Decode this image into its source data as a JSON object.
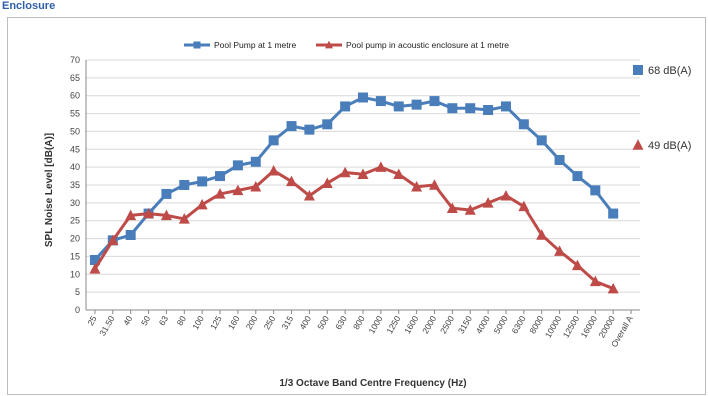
{
  "page": {
    "title": "Enclosure"
  },
  "chart_data": {
    "type": "line",
    "title": "",
    "xlabel": "1/3 Octave Band Centre Frequency (Hz)",
    "ylabel": "SPL Noise Level [dB(A)]",
    "ylim": [
      0,
      70
    ],
    "y_ticks": [
      0,
      5,
      10,
      15,
      20,
      25,
      30,
      35,
      40,
      45,
      50,
      55,
      60,
      65,
      70
    ],
    "grid": true,
    "legend_position": "top",
    "categories": [
      "25",
      "31.50",
      "40",
      "50",
      "63",
      "80",
      "100",
      "125",
      "160",
      "200",
      "250",
      "315",
      "400",
      "500",
      "630",
      "800",
      "1000",
      "1250",
      "1600",
      "2000",
      "2500",
      "3150",
      "4000",
      "5000",
      "6300",
      "8000",
      "10000",
      "12500",
      "16000",
      "20000",
      "Overall A"
    ],
    "series": [
      {
        "name": "Pool Pump at 1 metre",
        "color": "#4a7ebb",
        "marker": "square",
        "values": [
          14,
          19.5,
          21,
          27,
          32.5,
          35,
          36,
          37.5,
          40.5,
          41.5,
          47.5,
          51.5,
          50.5,
          52,
          57,
          59.5,
          58.5,
          57,
          57.5,
          58.5,
          56.5,
          56.5,
          56,
          57,
          52,
          47.5,
          42,
          37.5,
          33.5,
          27,
          null
        ]
      },
      {
        "name": "Pool pump in acoustic enclosure at 1 metre",
        "color": "#be4b48",
        "marker": "triangle",
        "values": [
          11.5,
          19.5,
          26.5,
          27,
          26.5,
          25.5,
          29.5,
          32.5,
          33.5,
          34.5,
          39,
          36,
          32,
          35.5,
          38.5,
          38,
          40,
          38,
          34.5,
          35,
          28.5,
          28,
          30,
          32,
          29,
          21,
          16.5,
          12.5,
          8,
          6,
          null
        ]
      }
    ],
    "annotations": [
      {
        "text": "68 dB(A)",
        "color": "#4a7ebb",
        "marker": "square",
        "series": "Pool Pump at 1 metre"
      },
      {
        "text": "49 dB(A)",
        "color": "#be4b48",
        "marker": "triangle",
        "series": "Pool pump in acoustic enclosure at 1 metre"
      }
    ]
  }
}
